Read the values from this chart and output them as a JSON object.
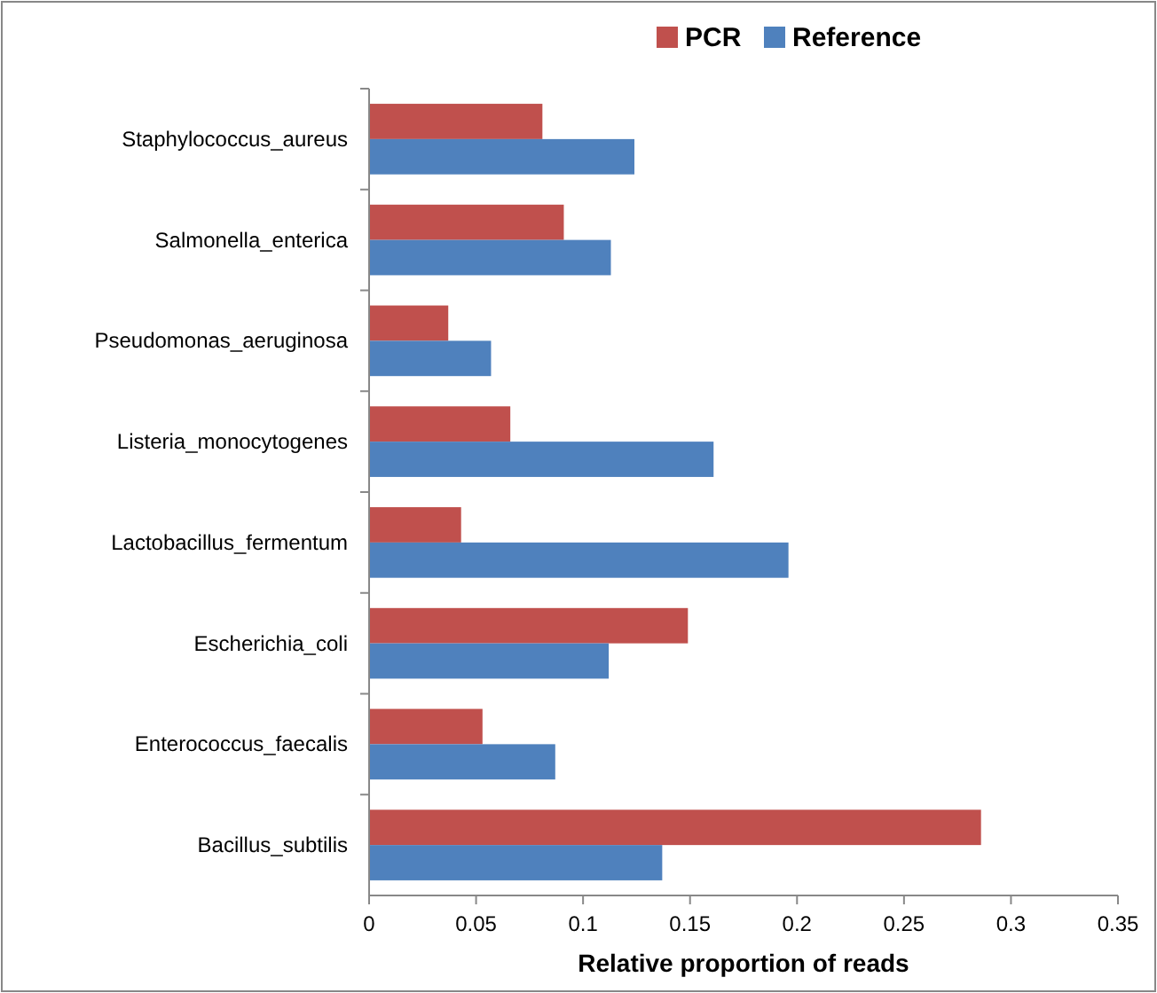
{
  "chart_data": {
    "type": "bar",
    "orientation": "horizontal",
    "xlabel": "Relative proportion of reads",
    "categories": [
      "Staphylococcus_aureus",
      "Salmonella_enterica",
      "Pseudomonas_aeruginosa",
      "Listeria_monocytogenes",
      "Lactobacillus_fermentum",
      "Escherichia_coli",
      "Enterococcus_faecalis",
      "Bacillus_subtilis"
    ],
    "series": [
      {
        "name": "PCR",
        "color": "#c0504d",
        "values": [
          0.081,
          0.091,
          0.037,
          0.066,
          0.043,
          0.149,
          0.053,
          0.286
        ]
      },
      {
        "name": "Reference",
        "color": "#4f81bd",
        "values": [
          0.124,
          0.113,
          0.057,
          0.161,
          0.196,
          0.112,
          0.087,
          0.137
        ]
      }
    ],
    "xlim": [
      0,
      0.35
    ],
    "xticks": [
      0,
      0.05,
      0.1,
      0.15,
      0.2,
      0.25,
      0.3,
      0.35
    ],
    "grid": false,
    "legend": "top"
  }
}
